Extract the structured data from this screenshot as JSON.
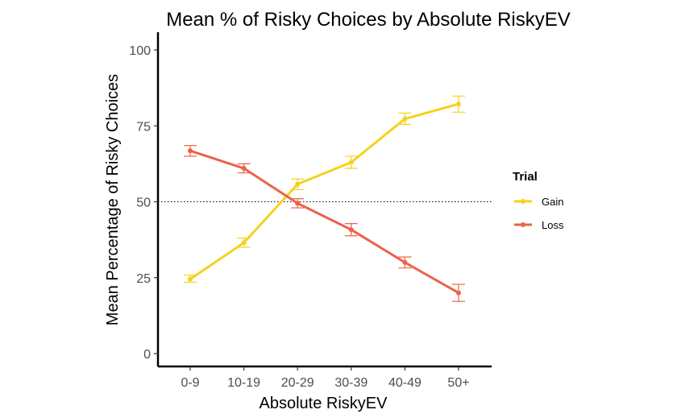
{
  "chart_data": {
    "type": "line",
    "title": "Mean % of Risky Choices by Absolute RiskyEV",
    "xlabel": "Absolute RiskyEV",
    "ylabel": "Mean Percentage of Risky Choices",
    "categories": [
      "0-9",
      "10-19",
      "20-29",
      "30-39",
      "40-49",
      "50+"
    ],
    "ylim": [
      -4,
      105
    ],
    "yticks": [
      0,
      25,
      50,
      75,
      100
    ],
    "reference_line": {
      "y": 50,
      "style": "dotted"
    },
    "grid": false,
    "legend": {
      "title": "Trial",
      "position": "right"
    },
    "series": [
      {
        "name": "Gain",
        "color": "#F5D21E",
        "values": [
          24.5,
          36.5,
          55.8,
          63.0,
          77.3,
          82.2
        ],
        "error_low": [
          23.5,
          35.0,
          54.0,
          61.0,
          75.5,
          79.5
        ],
        "error_high": [
          25.8,
          38.0,
          57.5,
          65.0,
          79.2,
          84.8
        ]
      },
      {
        "name": "Loss",
        "color": "#EB6248",
        "values": [
          66.8,
          61.0,
          49.5,
          40.8,
          30.0,
          20.0
        ],
        "error_low": [
          65.0,
          59.5,
          48.0,
          38.8,
          28.2,
          17.2
        ],
        "error_high": [
          68.5,
          62.5,
          51.0,
          42.8,
          31.8,
          22.8
        ]
      }
    ]
  }
}
